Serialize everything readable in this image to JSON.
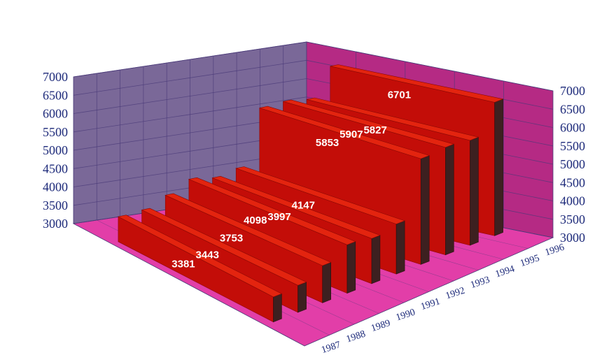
{
  "chart_data": {
    "type": "bar",
    "style": "3d-row",
    "title": "",
    "xlabel": "",
    "ylabel": "",
    "categories": [
      "1987",
      "1988",
      "1989",
      "1990",
      "1991",
      "1992",
      "1993",
      "1994",
      "1995",
      "1996"
    ],
    "values": [
      3381,
      3443,
      3753,
      4098,
      3997,
      4147,
      5853,
      5907,
      5827,
      6701
    ],
    "ylim": [
      3000,
      7000
    ],
    "yticks": [
      "3000",
      "3500",
      "4000",
      "4500",
      "5000",
      "5500",
      "6000",
      "6500",
      "7000"
    ],
    "grid": true,
    "legend": "none",
    "colors": {
      "bar_front": "#c30d08",
      "bar_top": "#e3240f",
      "bar_side": "#3d2020",
      "back_wall": "#7a6898",
      "right_wall": "#b52a84",
      "floor": "#e23ea8",
      "grid_line": "#4a3a78",
      "tick_text": "#1d2a7a",
      "data_label": "#ffffff"
    }
  }
}
